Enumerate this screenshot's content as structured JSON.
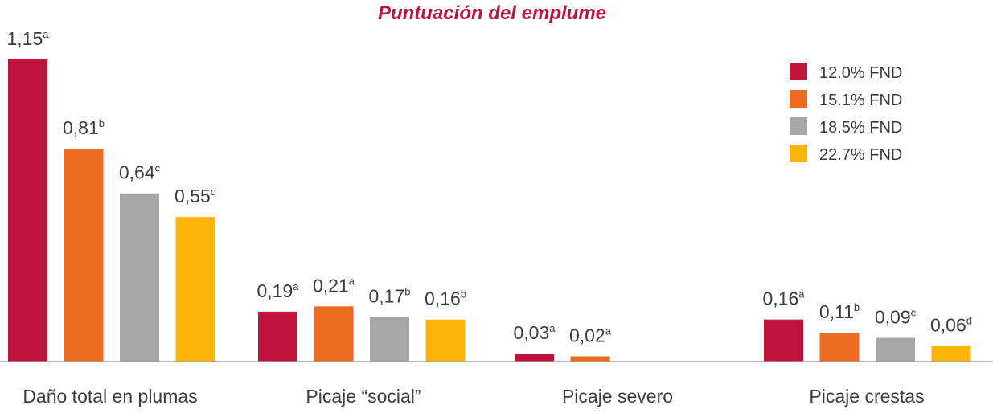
{
  "colors": {
    "title": "#c0143c",
    "axis": "#999999",
    "text": "#3c3c3c"
  },
  "chart_data": {
    "type": "bar",
    "title": "Puntuación del emplume",
    "xlabel": "",
    "ylabel": "",
    "ylim": [
      0,
      1.2
    ],
    "grid": false,
    "legend_position": "top-right",
    "categories": [
      "Daño total en plumas",
      "Picaje “social”",
      "Picaje severo",
      "Picaje crestas"
    ],
    "series": [
      {
        "name": "12.0% FND",
        "color": "#c0143c",
        "values": [
          1.15,
          0.19,
          0.03,
          0.16
        ],
        "labels": [
          "1,15",
          "0,19",
          "0,03",
          "0,16"
        ],
        "sup": [
          "a",
          "a",
          "a",
          "a"
        ]
      },
      {
        "name": "15.1% FND",
        "color": "#ec6b1e",
        "values": [
          0.81,
          0.21,
          0.02,
          0.11
        ],
        "labels": [
          "0,81",
          "0,21",
          "0,02",
          "0,11"
        ],
        "sup": [
          "b",
          "a",
          "a",
          "b"
        ]
      },
      {
        "name": "18.5% FND",
        "color": "#a6a6a6",
        "values": [
          0.64,
          0.17,
          null,
          0.09
        ],
        "labels": [
          "0,64",
          "0,17",
          null,
          "0,09"
        ],
        "sup": [
          "c",
          "b",
          null,
          "c"
        ]
      },
      {
        "name": "22.7% FND",
        "color": "#fbb40a",
        "values": [
          0.55,
          0.16,
          null,
          0.06
        ],
        "labels": [
          "0,55",
          "0,16",
          null,
          "0,06"
        ],
        "sup": [
          "d",
          "b",
          null,
          "d"
        ]
      }
    ]
  }
}
